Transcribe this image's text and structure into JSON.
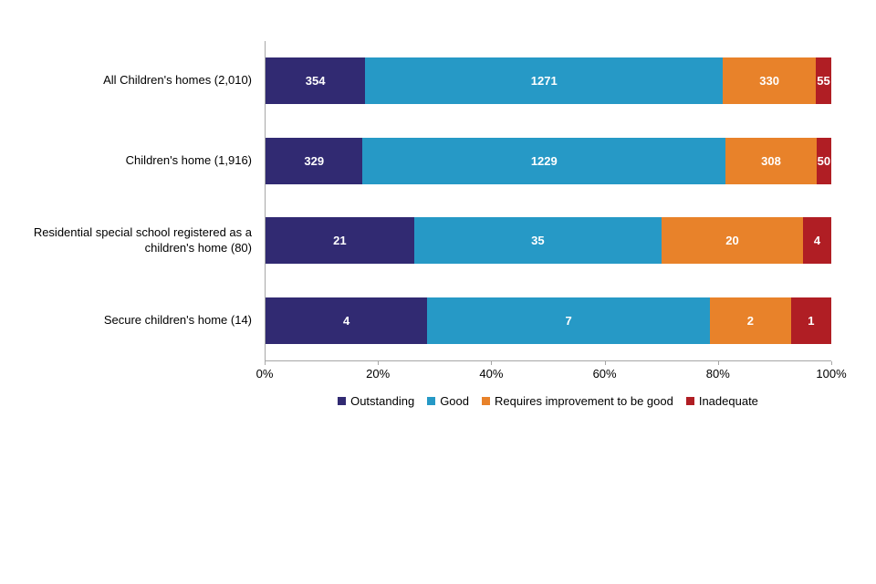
{
  "chart_data": {
    "type": "bar",
    "variant": "horizontal-100pct-stacked",
    "title": "",
    "categories": [
      "All Children's homes (2,010)",
      "Children's home (1,916)",
      "Residential special school registered as a children's home (80)",
      "Secure children's home (14)"
    ],
    "series": [
      {
        "name": "Outstanding",
        "color": "#312a72",
        "values": [
          354,
          329,
          21,
          4
        ]
      },
      {
        "name": "Good",
        "color": "#2699c6",
        "values": [
          1271,
          1229,
          35,
          7
        ]
      },
      {
        "name": "Requires improvement to be good",
        "color": "#e8822a",
        "values": [
          330,
          308,
          20,
          2
        ]
      },
      {
        "name": "Inadequate",
        "color": "#b01e24",
        "values": [
          55,
          50,
          4,
          1
        ]
      }
    ],
    "x_axis": {
      "min": 0,
      "max": 100,
      "tick_labels": [
        "0%",
        "20%",
        "40%",
        "60%",
        "80%",
        "100%"
      ]
    },
    "legend_position": "bottom",
    "grid": false,
    "axis_color": "#a6a6a6",
    "value_label_color": "#ffffff"
  }
}
